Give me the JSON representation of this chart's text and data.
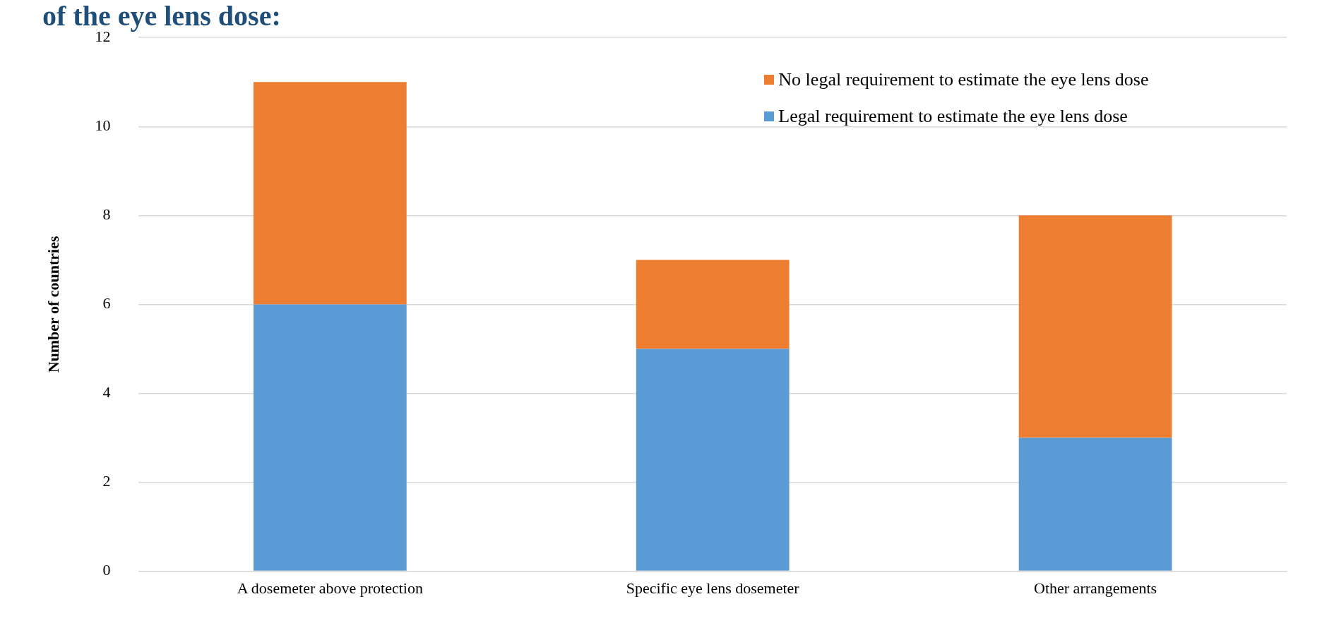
{
  "chart_data": {
    "type": "bar",
    "title": "of the eye lens dose:",
    "ylabel": "Number of countries",
    "categories": [
      "A dosemeter above protection",
      "Specific eye lens dosemeter",
      "Other arrangements"
    ],
    "series": [
      {
        "name": "Legal requirement to estimate the eye lens dose",
        "color": "#5b9bd5",
        "values": [
          6,
          5,
          3
        ]
      },
      {
        "name": "No legal requirement to estimate the eye lens dose",
        "color": "#ed7d31",
        "values": [
          5,
          2,
          5
        ]
      }
    ],
    "stacked": true,
    "ylim": [
      0,
      12
    ],
    "yticks": [
      0,
      2,
      4,
      6,
      8,
      10,
      12
    ],
    "grid": "y",
    "legend": "top right"
  }
}
